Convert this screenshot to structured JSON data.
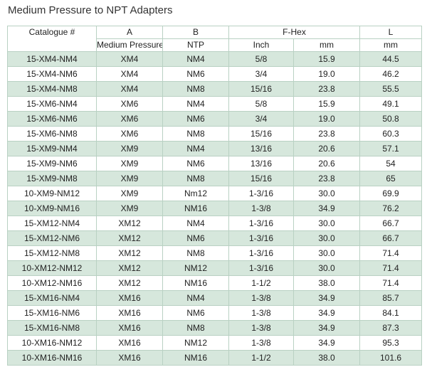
{
  "title": "Medium Pressure to NPT Adapters",
  "columns": {
    "catalogue": "Catalogue #",
    "a_letter": "A",
    "a_label": "Medium Pressure",
    "b_letter": "B",
    "b_label": "NTP",
    "fhex": "F-Hex",
    "fhex_inch": "Inch",
    "fhex_mm": "mm",
    "l_letter": "L",
    "l_unit": "mm"
  },
  "rows": [
    {
      "catalogue": "15-XM4-NM4",
      "a": "XM4",
      "b": "NM4",
      "inch": "5/8",
      "mm": "15.9",
      "l": "44.5"
    },
    {
      "catalogue": "15-XM4-NM6",
      "a": "XM4",
      "b": "NM6",
      "inch": "3/4",
      "mm": "19.0",
      "l": "46.2"
    },
    {
      "catalogue": "15-XM4-NM8",
      "a": "XM4",
      "b": "NM8",
      "inch": "15/16",
      "mm": "23.8",
      "l": "55.5"
    },
    {
      "catalogue": "15-XM6-NM4",
      "a": "XM6",
      "b": "NM4",
      "inch": "5/8",
      "mm": "15.9",
      "l": "49.1"
    },
    {
      "catalogue": "15-XM6-NM6",
      "a": "XM6",
      "b": "NM6",
      "inch": "3/4",
      "mm": "19.0",
      "l": "50.8"
    },
    {
      "catalogue": "15-XM6-NM8",
      "a": "XM6",
      "b": "NM8",
      "inch": "15/16",
      "mm": "23.8",
      "l": "60.3"
    },
    {
      "catalogue": "15-XM9-NM4",
      "a": "XM9",
      "b": "NM4",
      "inch": "13/16",
      "mm": "20.6",
      "l": "57.1"
    },
    {
      "catalogue": "15-XM9-NM6",
      "a": "XM9",
      "b": "NM6",
      "inch": "13/16",
      "mm": "20.6",
      "l": "54"
    },
    {
      "catalogue": "15-XM9-NM8",
      "a": "XM9",
      "b": "NM8",
      "inch": "15/16",
      "mm": "23.8",
      "l": "65"
    },
    {
      "catalogue": "10-XM9-NM12",
      "a": "XM9",
      "b": "Nm12",
      "inch": "1-3/16",
      "mm": "30.0",
      "l": "69.9"
    },
    {
      "catalogue": "10-XM9-NM16",
      "a": "XM9",
      "b": "NM16",
      "inch": "1-3/8",
      "mm": "34.9",
      "l": "76.2"
    },
    {
      "catalogue": "15-XM12-NM4",
      "a": "XM12",
      "b": "NM4",
      "inch": "1-3/16",
      "mm": "30.0",
      "l": "66.7"
    },
    {
      "catalogue": "15-XM12-NM6",
      "a": "XM12",
      "b": "NM6",
      "inch": "1-3/16",
      "mm": "30.0",
      "l": "66.7"
    },
    {
      "catalogue": "15-XM12-NM8",
      "a": "XM12",
      "b": "NM8",
      "inch": "1-3/16",
      "mm": "30.0",
      "l": "71.4"
    },
    {
      "catalogue": "10-XM12-NM12",
      "a": "XM12",
      "b": "NM12",
      "inch": "1-3/16",
      "mm": "30.0",
      "l": "71.4"
    },
    {
      "catalogue": "10-XM12-NM16",
      "a": "XM12",
      "b": "NM16",
      "inch": "1-1/2",
      "mm": "38.0",
      "l": "71.4"
    },
    {
      "catalogue": "15-XM16-NM4",
      "a": "XM16",
      "b": "NM4",
      "inch": "1-3/8",
      "mm": "34.9",
      "l": "85.7"
    },
    {
      "catalogue": "15-XM16-NM6",
      "a": "XM16",
      "b": "NM6",
      "inch": "1-3/8",
      "mm": "34.9",
      "l": "84.1"
    },
    {
      "catalogue": "15-XM16-NM8",
      "a": "XM16",
      "b": "NM8",
      "inch": "1-3/8",
      "mm": "34.9",
      "l": "87.3"
    },
    {
      "catalogue": "10-XM16-NM12",
      "a": "XM16",
      "b": "NM12",
      "inch": "1-3/8",
      "mm": "34.9",
      "l": "95.3"
    },
    {
      "catalogue": "10-XM16-NM16",
      "a": "XM16",
      "b": "NM16",
      "inch": "1-1/2",
      "mm": "38.0",
      "l": "101.6"
    }
  ]
}
